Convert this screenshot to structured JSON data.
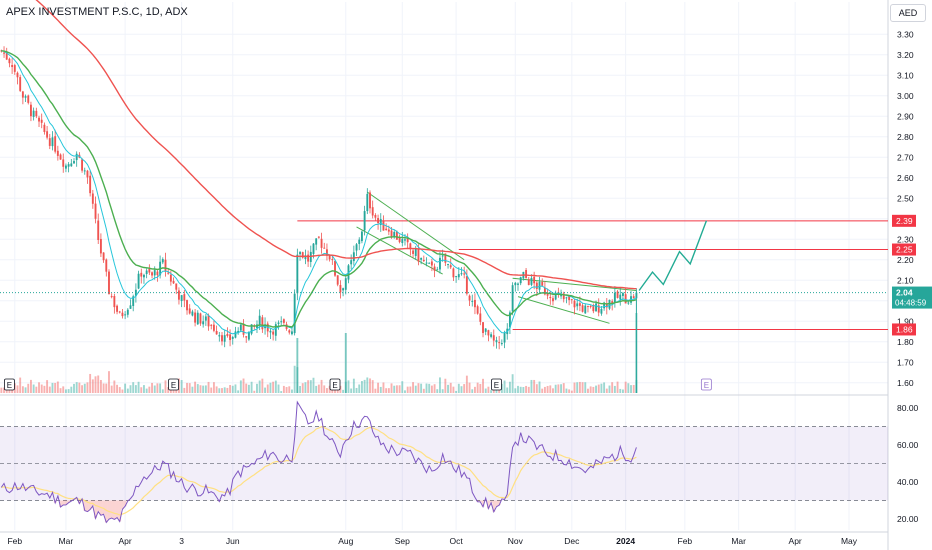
{
  "title": "APEX INVESTMENT P.S.C, 1D, ADX",
  "currency": "AED",
  "colors": {
    "up": "#26a69a",
    "down": "#ef5350",
    "ema_fast": "#26c6da",
    "ema_mid": "#4caf50",
    "ema_slow": "#ef5350",
    "rsi": "#7e57c2",
    "rsi_ma": "#ffe082",
    "hline": "#f23645",
    "pattern": "#4caf50",
    "projection": "#22ab94"
  },
  "chart_data": [
    {
      "type": "candlestick",
      "yaxis": {
        "range": [
          1.55,
          3.36
        ],
        "ticks": [
          "3.30",
          "3.20",
          "3.10",
          "3.00",
          "2.90",
          "2.80",
          "2.70",
          "2.60",
          "2.50",
          "2.40",
          "2.30",
          "2.20",
          "2.10",
          "2.00",
          "1.90",
          "1.80",
          "1.70",
          "1.60"
        ]
      },
      "xaxis": {
        "ticks": [
          {
            "label": "Feb",
            "index": 5
          },
          {
            "label": "Mar",
            "index": 24
          },
          {
            "label": "Apr",
            "index": 46
          },
          {
            "label": "3",
            "index": 67
          },
          {
            "label": "Jun",
            "index": 86
          },
          {
            "label": "Aug",
            "index": 128
          },
          {
            "label": "Sep",
            "index": 149
          },
          {
            "label": "Oct",
            "index": 169
          },
          {
            "label": "Nov",
            "index": 191
          },
          {
            "label": "Dec",
            "index": 212
          },
          {
            "label": "2024",
            "index": 232
          },
          {
            "label": "Feb",
            "index": 254
          },
          {
            "label": "Mar",
            "index": 274
          },
          {
            "label": "Apr",
            "index": 295
          },
          {
            "label": "May",
            "index": 315
          }
        ]
      },
      "anchors": [
        [
          0,
          3.22
        ],
        [
          4,
          3.16
        ],
        [
          8,
          3.0
        ],
        [
          12,
          2.9
        ],
        [
          16,
          2.82
        ],
        [
          20,
          2.75
        ],
        [
          24,
          2.66
        ],
        [
          28,
          2.72
        ],
        [
          32,
          2.6
        ],
        [
          36,
          2.3
        ],
        [
          40,
          2.05
        ],
        [
          44,
          1.92
        ],
        [
          48,
          2.0
        ],
        [
          52,
          2.14
        ],
        [
          56,
          2.12
        ],
        [
          60,
          2.18
        ],
        [
          64,
          2.08
        ],
        [
          68,
          1.98
        ],
        [
          72,
          1.92
        ],
        [
          76,
          1.9
        ],
        [
          80,
          1.86
        ],
        [
          84,
          1.8
        ],
        [
          88,
          1.86
        ],
        [
          92,
          1.84
        ],
        [
          96,
          1.9
        ],
        [
          100,
          1.86
        ],
        [
          104,
          1.88
        ],
        [
          108,
          1.86
        ],
        [
          110,
          2.25
        ],
        [
          114,
          2.2
        ],
        [
          118,
          2.3
        ],
        [
          122,
          2.22
        ],
        [
          126,
          2.05
        ],
        [
          130,
          2.18
        ],
        [
          134,
          2.35
        ],
        [
          136,
          2.5
        ],
        [
          140,
          2.38
        ],
        [
          144,
          2.35
        ],
        [
          148,
          2.3
        ],
        [
          152,
          2.25
        ],
        [
          156,
          2.2
        ],
        [
          160,
          2.15
        ],
        [
          164,
          2.2
        ],
        [
          168,
          2.14
        ],
        [
          172,
          2.1
        ],
        [
          176,
          1.95
        ],
        [
          180,
          1.84
        ],
        [
          184,
          1.78
        ],
        [
          188,
          1.85
        ],
        [
          190,
          2.05
        ],
        [
          194,
          2.12
        ],
        [
          198,
          2.08
        ],
        [
          202,
          2.05
        ],
        [
          206,
          2.02
        ],
        [
          210,
          2.0
        ],
        [
          214,
          1.98
        ],
        [
          218,
          1.95
        ],
        [
          222,
          1.97
        ],
        [
          226,
          2.0
        ],
        [
          230,
          2.02
        ],
        [
          234,
          2.01
        ],
        [
          236,
          2.04
        ]
      ],
      "emas": [
        {
          "name": "",
          "period": 9,
          "color": "#26c6da"
        },
        {
          "name": "",
          "period": 21,
          "color": "#4caf50"
        },
        {
          "name": "",
          "period": 100,
          "color": "#ef5350"
        }
      ],
      "hlines": [
        {
          "value": 2.39,
          "label": "2.39"
        },
        {
          "value": 2.25,
          "label": "2.25"
        },
        {
          "value": 1.86,
          "label": "1.86"
        }
      ],
      "last_price": {
        "value": 2.04,
        "label": "2.04",
        "countdown": "04:48:59"
      },
      "projection": [
        [
          237,
          2.05
        ],
        [
          242,
          2.14
        ],
        [
          246,
          2.08
        ],
        [
          252,
          2.24
        ],
        [
          256,
          2.18
        ],
        [
          262,
          2.39
        ]
      ],
      "earnings_markers": [
        {
          "index": 3,
          "label": "E"
        },
        {
          "index": 64,
          "label": "E"
        },
        {
          "index": 124,
          "label": "E"
        },
        {
          "index": 184,
          "label": "E"
        },
        {
          "index": 262,
          "label": "E"
        }
      ]
    },
    {
      "type": "line",
      "title": "",
      "yaxis": {
        "range": [
          14,
          86
        ],
        "ticks": [
          "80.00",
          "60.00",
          "40.00",
          "20.00"
        ],
        "band": [
          30,
          70
        ],
        "mid": 50
      },
      "series": [
        {
          "name": "",
          "color": "#7e57c2",
          "anchors": [
            [
              0,
              36
            ],
            [
              6,
              38
            ],
            [
              12,
              35
            ],
            [
              18,
              33
            ],
            [
              24,
              28
            ],
            [
              28,
              30
            ],
            [
              32,
              27
            ],
            [
              36,
              22
            ],
            [
              40,
              18
            ],
            [
              44,
              20
            ],
            [
              48,
              30
            ],
            [
              52,
              42
            ],
            [
              56,
              45
            ],
            [
              60,
              50
            ],
            [
              64,
              44
            ],
            [
              68,
              38
            ],
            [
              72,
              36
            ],
            [
              76,
              35
            ],
            [
              80,
              32
            ],
            [
              84,
              33
            ],
            [
              88,
              45
            ],
            [
              92,
              48
            ],
            [
              96,
              52
            ],
            [
              100,
              56
            ],
            [
              104,
              52
            ],
            [
              108,
              54
            ],
            [
              110,
              80
            ],
            [
              114,
              72
            ],
            [
              118,
              76
            ],
            [
              122,
              62
            ],
            [
              126,
              56
            ],
            [
              128,
              64
            ],
            [
              132,
              72
            ],
            [
              136,
              74
            ],
            [
              140,
              62
            ],
            [
              144,
              58
            ],
            [
              148,
              56
            ],
            [
              152,
              55
            ],
            [
              156,
              50
            ],
            [
              160,
              46
            ],
            [
              164,
              54
            ],
            [
              168,
              48
            ],
            [
              172,
              44
            ],
            [
              176,
              34
            ],
            [
              180,
              28
            ],
            [
              184,
              26
            ],
            [
              188,
              30
            ],
            [
              190,
              62
            ],
            [
              194,
              64
            ],
            [
              198,
              60
            ],
            [
              202,
              56
            ],
            [
              206,
              54
            ],
            [
              210,
              52
            ],
            [
              214,
              48
            ],
            [
              218,
              46
            ],
            [
              222,
              50
            ],
            [
              226,
              53
            ],
            [
              230,
              56
            ],
            [
              234,
              54
            ],
            [
              236,
              59
            ]
          ]
        },
        {
          "name": "",
          "color": "#ffe082",
          "period": 14
        }
      ]
    }
  ]
}
